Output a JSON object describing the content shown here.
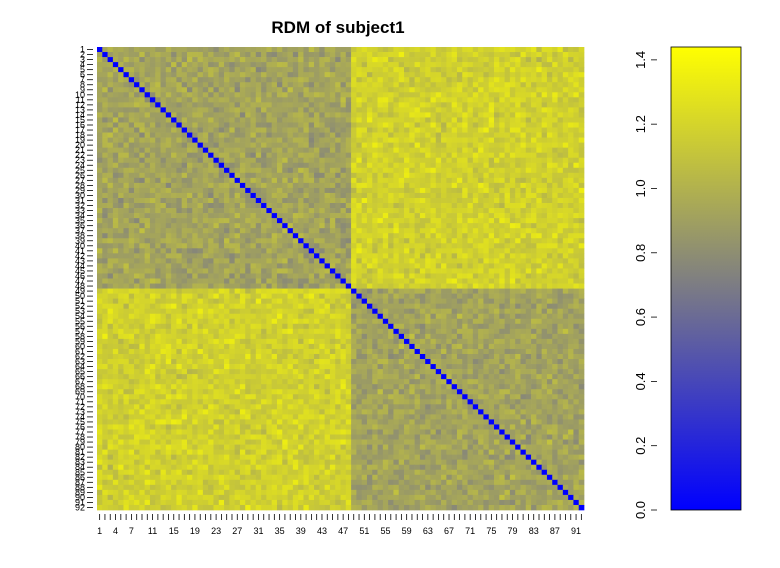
{
  "chart_data": {
    "type": "heatmap",
    "title": "RDM of subject1",
    "n": 92,
    "groups": [
      {
        "start": 1,
        "end": 48
      },
      {
        "start": 49,
        "end": 92
      }
    ],
    "within_group_mean": 0.92,
    "between_group_mean": 1.18,
    "value_spread": 0.08,
    "diagonal_value": 0.0,
    "x_tick_labels": [
      "1",
      "4",
      "7",
      "11",
      "15",
      "19",
      "23",
      "27",
      "31",
      "35",
      "39",
      "43",
      "47",
      "51",
      "55",
      "59",
      "63",
      "67",
      "71",
      "75",
      "79",
      "83",
      "87",
      "91"
    ],
    "y_tick_labels": [
      "1",
      "2",
      "3",
      "4",
      "5",
      "6",
      "7",
      "8",
      "9",
      "10",
      "11",
      "12",
      "13",
      "14",
      "15",
      "16",
      "17",
      "18",
      "19",
      "20",
      "21",
      "22",
      "23",
      "24",
      "25",
      "26",
      "27",
      "28",
      "29",
      "30",
      "31",
      "32",
      "33",
      "34",
      "35",
      "36",
      "37",
      "38",
      "39",
      "40",
      "41",
      "42",
      "43",
      "44",
      "45",
      "46",
      "47",
      "48",
      "49",
      "50",
      "51",
      "52",
      "53",
      "54",
      "55",
      "56",
      "57",
      "58",
      "59",
      "60",
      "61",
      "62",
      "63",
      "64",
      "65",
      "66",
      "67",
      "68",
      "69",
      "70",
      "71",
      "72",
      "73",
      "74",
      "75",
      "76",
      "77",
      "78",
      "79",
      "80",
      "81",
      "82",
      "83",
      "84",
      "85",
      "86",
      "87",
      "88",
      "89",
      "90",
      "91",
      "92"
    ],
    "colorbar": {
      "min": 0.0,
      "max": 1.44,
      "ticks": [
        "0.0",
        "0.2",
        "0.4",
        "0.6",
        "0.8",
        "1.0",
        "1.2",
        "1.4"
      ],
      "colors": [
        "#0000ff",
        "#808080",
        "#ffff00"
      ]
    }
  }
}
